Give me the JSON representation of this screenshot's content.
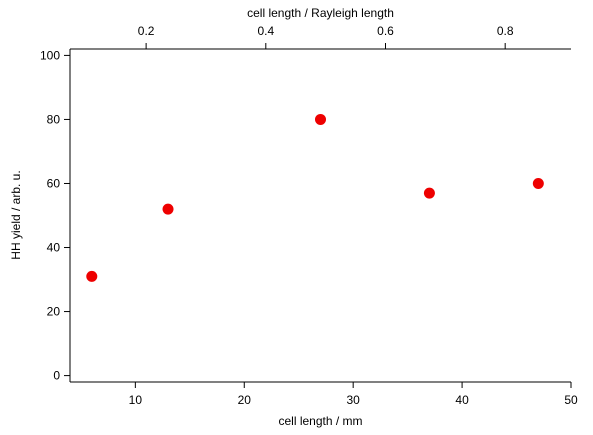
{
  "chart_data": {
    "type": "scatter",
    "title": "",
    "xlabel": "cell length / mm",
    "x2label": "cell length / Rayleigh length",
    "ylabel": "HH yield / arb. u.",
    "xlim": [
      4,
      50
    ],
    "ylim": [
      -2,
      102
    ],
    "x2_ticks": [
      0.2,
      0.4,
      0.6,
      0.8
    ],
    "x2_per_x": 0.0182,
    "x_ticks": [
      10,
      20,
      30,
      40,
      50
    ],
    "y_ticks": [
      0,
      20,
      40,
      60,
      80,
      100
    ],
    "grid": false,
    "legend": "none",
    "marker_color": "#ee0000",
    "series": [
      {
        "x": [
          6,
          13,
          27,
          37,
          47
        ],
        "y": [
          31,
          52,
          80,
          57,
          60
        ]
      }
    ]
  }
}
